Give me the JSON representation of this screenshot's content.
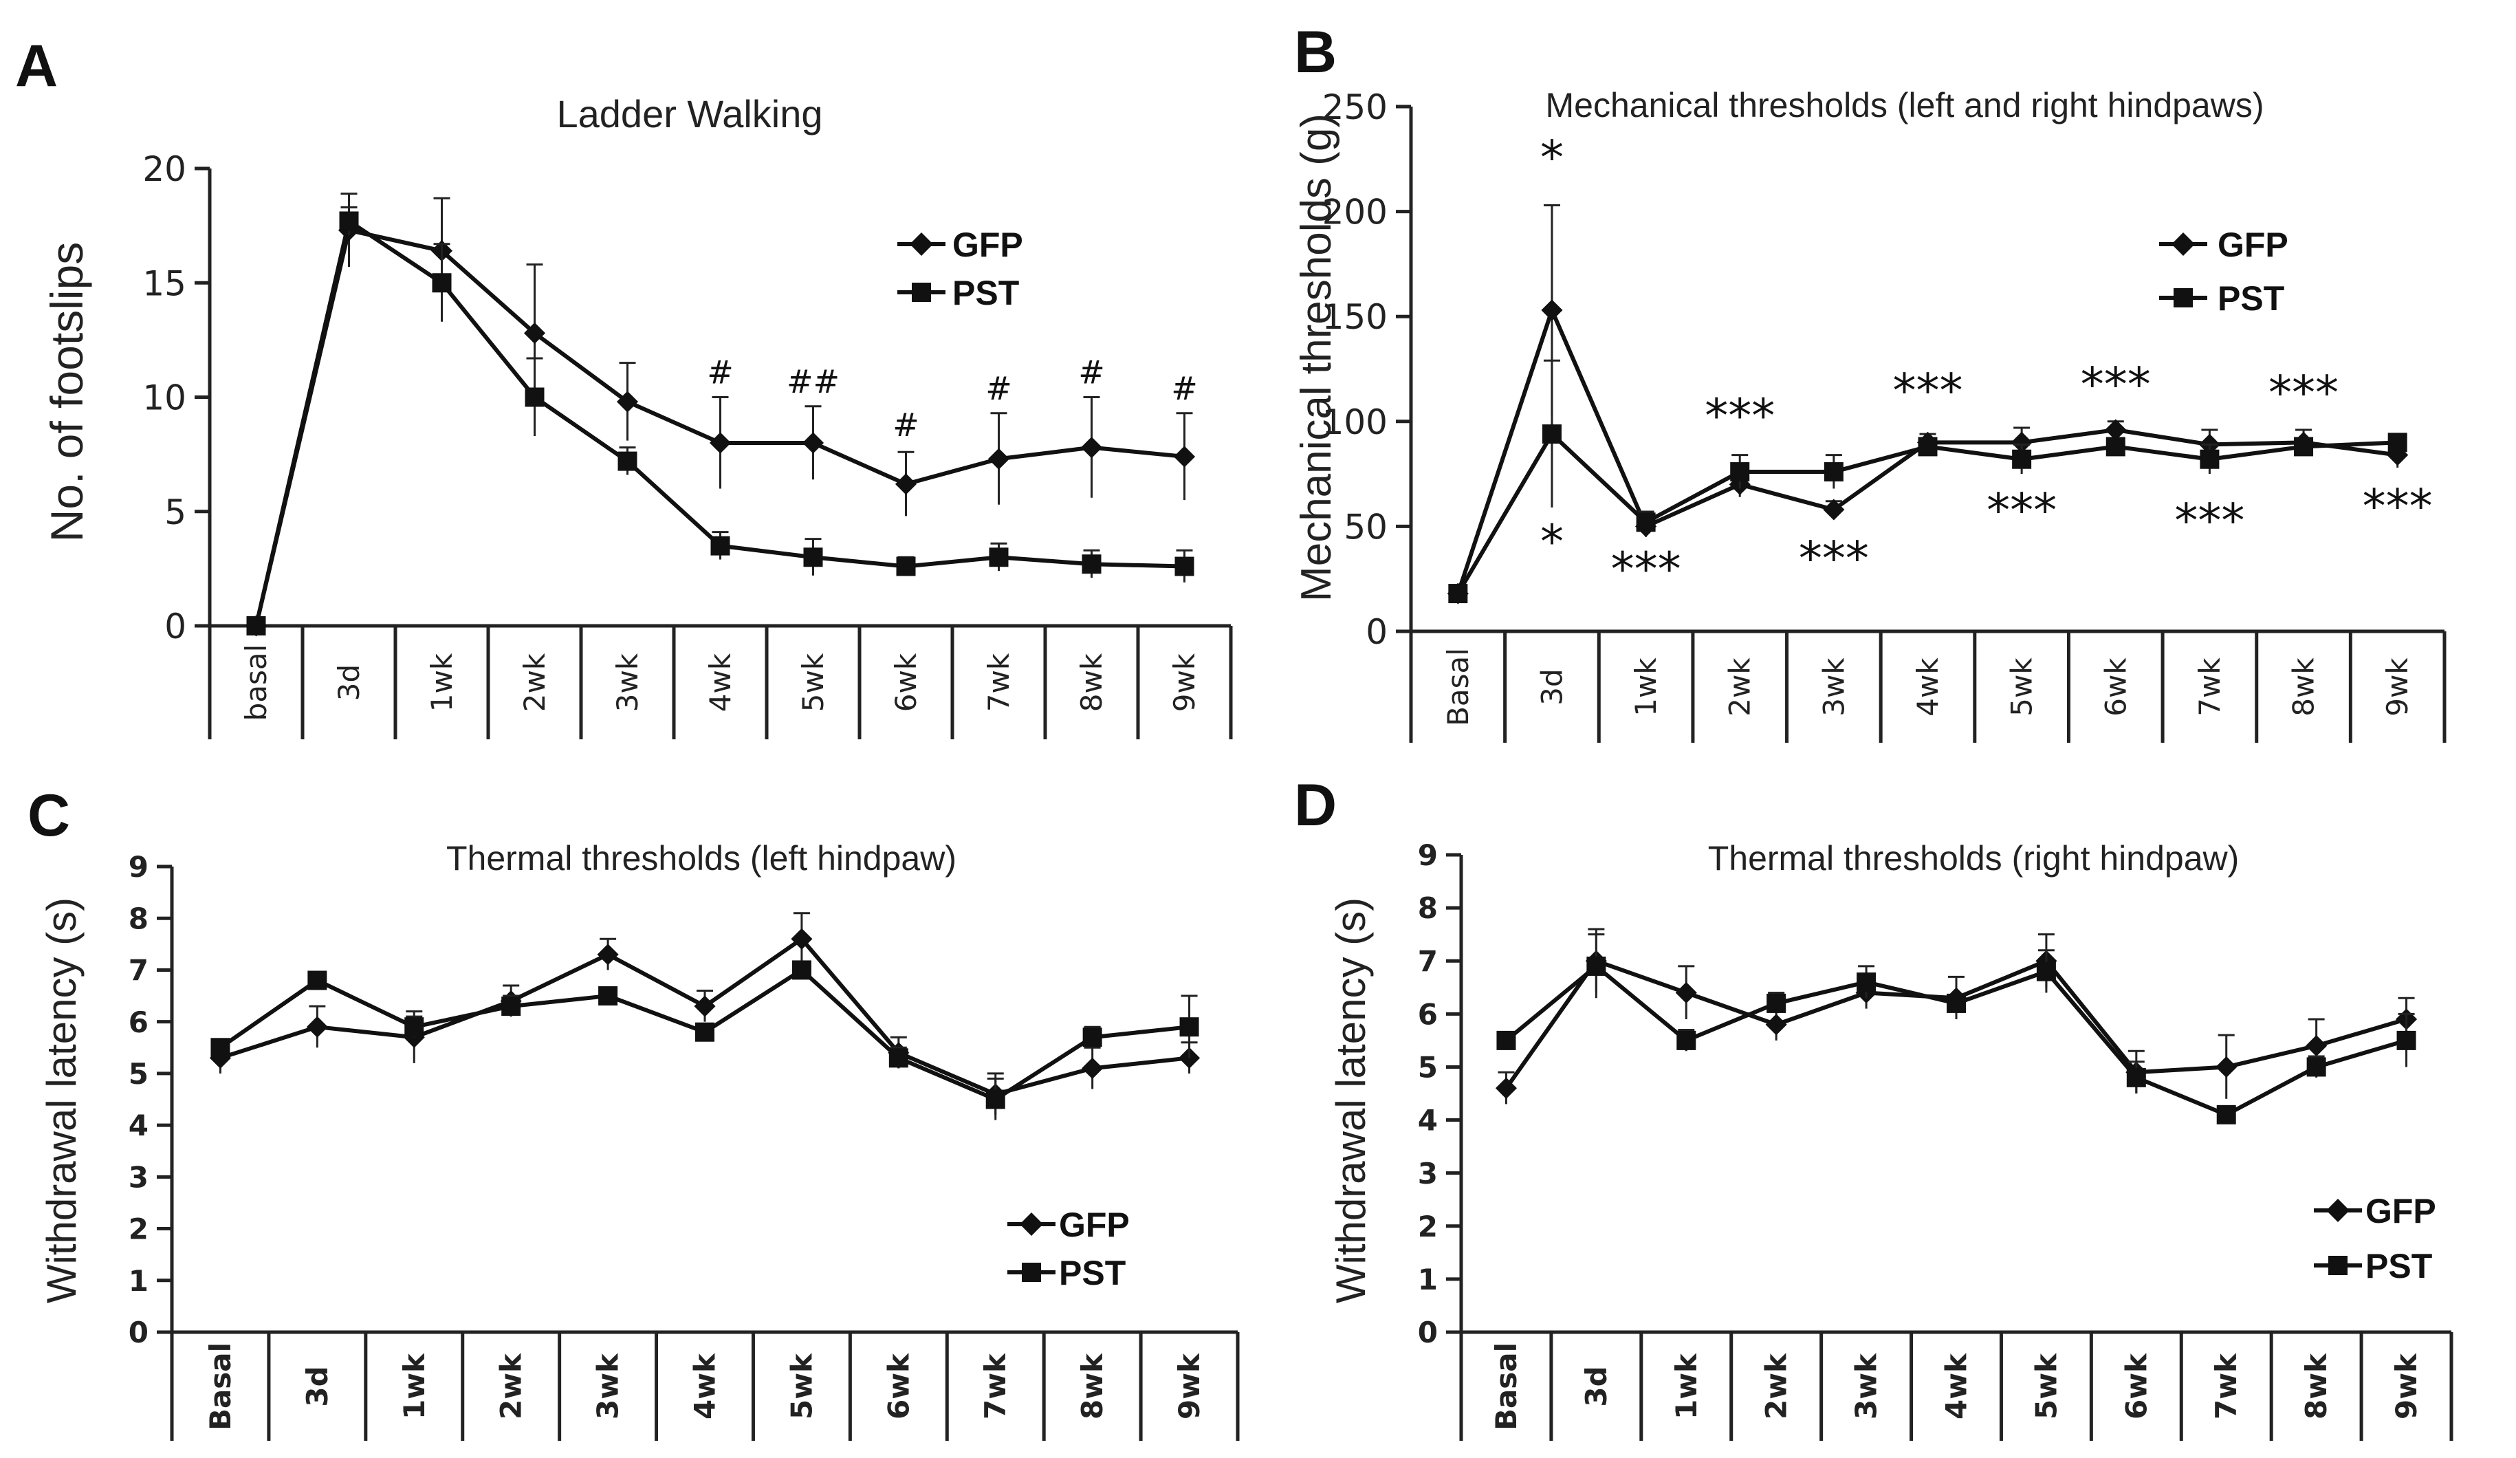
{
  "panel_letters": [
    "A",
    "B",
    "C",
    "D"
  ],
  "legend": {
    "gfp": "GFP",
    "pst": "PST"
  },
  "chart_data": [
    {
      "type": "line",
      "panel": "A",
      "title": "Ladder Walking",
      "xlabel": "",
      "ylabel": "No. of footslips",
      "categories": [
        "basal",
        "3d",
        "1wk",
        "2wk",
        "3wk",
        "4wk",
        "5wk",
        "6wk",
        "7wk",
        "8wk",
        "9wk"
      ],
      "ylim": [
        0,
        20
      ],
      "yticks": [
        0,
        5,
        10,
        15,
        20
      ],
      "legend_position": "top-right",
      "series": [
        {
          "name": "GFP",
          "marker": "diamond",
          "values": [
            0,
            17.3,
            16.4,
            12.8,
            9.8,
            8.0,
            8.0,
            6.2,
            7.3,
            7.8,
            7.4
          ],
          "error": [
            0,
            1.6,
            2.3,
            3.0,
            1.7,
            2.0,
            1.6,
            1.4,
            2.0,
            2.2,
            1.9
          ]
        },
        {
          "name": "PST",
          "marker": "square",
          "values": [
            0,
            17.7,
            15.0,
            10.0,
            7.2,
            3.5,
            3.0,
            2.6,
            3.0,
            2.7,
            2.6
          ],
          "error": [
            0,
            0.6,
            1.7,
            1.7,
            0.6,
            0.6,
            0.8,
            0.4,
            0.6,
            0.6,
            0.7
          ]
        }
      ],
      "annotations": [
        {
          "label": "#",
          "index": 5,
          "at": 10.6
        },
        {
          "label": "##",
          "index": 6,
          "at": 10.2
        },
        {
          "label": "#",
          "index": 7,
          "at": 8.3
        },
        {
          "label": "#",
          "index": 8,
          "at": 9.9
        },
        {
          "label": "#",
          "index": 9,
          "at": 10.6
        },
        {
          "label": "#",
          "index": 10,
          "at": 9.9
        }
      ]
    },
    {
      "type": "line",
      "panel": "B",
      "title": "Mechanical thresholds (left and right hindpaws)",
      "xlabel": "",
      "ylabel": "Mechanical thresholds (g)",
      "categories": [
        "Basal",
        "3d",
        "1wk",
        "2wk",
        "3wk",
        "4wk",
        "5wk",
        "6wk",
        "7wk",
        "8wk",
        "9wk"
      ],
      "ylim": [
        0,
        250
      ],
      "yticks": [
        0,
        50,
        100,
        150,
        200,
        250
      ],
      "legend_position": "top-right",
      "series": [
        {
          "name": "GFP",
          "marker": "diamond",
          "values": [
            18,
            153,
            50,
            70,
            58,
            90,
            90,
            96,
            89,
            90,
            84
          ],
          "error": [
            0,
            50,
            5,
            6,
            4,
            4,
            7,
            4,
            7,
            6,
            6
          ]
        },
        {
          "name": "PST",
          "marker": "square",
          "values": [
            18,
            94,
            52,
            76,
            76,
            88,
            82,
            88,
            82,
            88,
            90
          ],
          "error": [
            0,
            35,
            5,
            8,
            8,
            4,
            7,
            4,
            7,
            4,
            4
          ]
        }
      ],
      "annotations": [
        {
          "label": "*",
          "index": 1,
          "at": 218
        },
        {
          "label": "*",
          "index": 1,
          "at": 35
        },
        {
          "label": "***",
          "index": 2,
          "at": 22
        },
        {
          "label": "***",
          "index": 3,
          "at": 95
        },
        {
          "label": "***",
          "index": 4,
          "at": 27
        },
        {
          "label": "***",
          "index": 5,
          "at": 107
        },
        {
          "label": "***",
          "index": 6,
          "at": 50
        },
        {
          "label": "***",
          "index": 7,
          "at": 110
        },
        {
          "label": "***",
          "index": 8,
          "at": 45
        },
        {
          "label": "***",
          "index": 9,
          "at": 106
        },
        {
          "label": "***",
          "index": 10,
          "at": 52
        }
      ]
    },
    {
      "type": "line",
      "panel": "C",
      "title": "Thermal thresholds (left hindpaw)",
      "xlabel": "",
      "ylabel": "Withdrawal latency (s)",
      "categories": [
        "Basal",
        "3d",
        "1wk",
        "2wk",
        "3wk",
        "4wk",
        "5wk",
        "6wk",
        "7wk",
        "8wk",
        "9wk"
      ],
      "ylim": [
        0,
        9
      ],
      "yticks": [
        0,
        1,
        2,
        3,
        4,
        5,
        6,
        7,
        8,
        9
      ],
      "legend_position": "bottom-right",
      "series": [
        {
          "name": "GFP",
          "marker": "diamond",
          "values": [
            5.3,
            5.9,
            5.7,
            6.4,
            7.3,
            6.3,
            7.6,
            5.4,
            4.6,
            5.1,
            5.3
          ],
          "error": [
            0.3,
            0.4,
            0.5,
            0.3,
            0.3,
            0.3,
            0.5,
            0.3,
            0.4,
            0.4,
            0.3
          ]
        },
        {
          "name": "PST",
          "marker": "square",
          "values": [
            5.5,
            6.8,
            5.9,
            6.3,
            6.5,
            5.8,
            7.0,
            5.3,
            4.5,
            5.7,
            5.9
          ],
          "error": [
            0.1,
            0.1,
            0.2,
            0.2,
            0.1,
            0.1,
            0.1,
            0.2,
            0.4,
            0.2,
            0.6
          ]
        }
      ]
    },
    {
      "type": "line",
      "panel": "D",
      "title": "Thermal thresholds (right hindpaw)",
      "xlabel": "",
      "ylabel": "Withdrawal latency (s)",
      "categories": [
        "Basal",
        "3d",
        "1wk",
        "2wk",
        "3wk",
        "4wk",
        "5wk",
        "6wk",
        "7wk",
        "8wk",
        "9wk"
      ],
      "ylim": [
        0,
        9
      ],
      "yticks": [
        0,
        1,
        2,
        3,
        4,
        5,
        6,
        7,
        8,
        9
      ],
      "legend_position": "bottom-right",
      "series": [
        {
          "name": "GFP",
          "marker": "diamond",
          "values": [
            4.6,
            7.0,
            6.4,
            5.8,
            6.4,
            6.3,
            7.0,
            4.9,
            5.0,
            5.4,
            5.9
          ],
          "error": [
            0.3,
            0.6,
            0.5,
            0.3,
            0.3,
            0.4,
            0.5,
            0.4,
            0.6,
            0.5,
            0.4
          ]
        },
        {
          "name": "PST",
          "marker": "square",
          "values": [
            5.5,
            6.9,
            5.5,
            6.2,
            6.6,
            6.2,
            6.8,
            4.8,
            4.1,
            5.0,
            5.5
          ],
          "error": [
            0.1,
            0.6,
            0.2,
            0.2,
            0.3,
            0.1,
            0.4,
            0.3,
            0.1,
            0.2,
            0.5
          ]
        }
      ]
    }
  ]
}
